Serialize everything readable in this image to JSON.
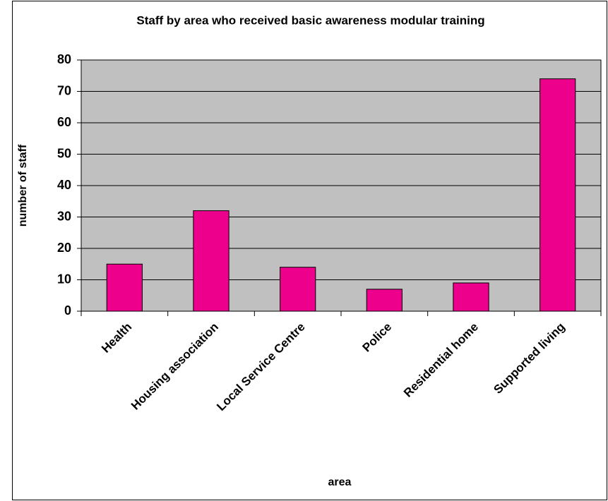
{
  "chart_data": {
    "type": "bar",
    "title": "Staff by area who received basic awareness modular training",
    "x_label": "area",
    "y_label": "number of staff",
    "categories": [
      "Health",
      "Housing association",
      "Local Service Centre",
      "Police",
      "Residential home",
      "Supported living"
    ],
    "values": [
      15,
      32,
      14,
      7,
      9,
      74
    ],
    "color": "#ec008c",
    "ylim": [
      0,
      80
    ],
    "yticks": [
      0,
      10,
      20,
      30,
      40,
      50,
      60,
      70,
      80
    ],
    "grid": true
  }
}
